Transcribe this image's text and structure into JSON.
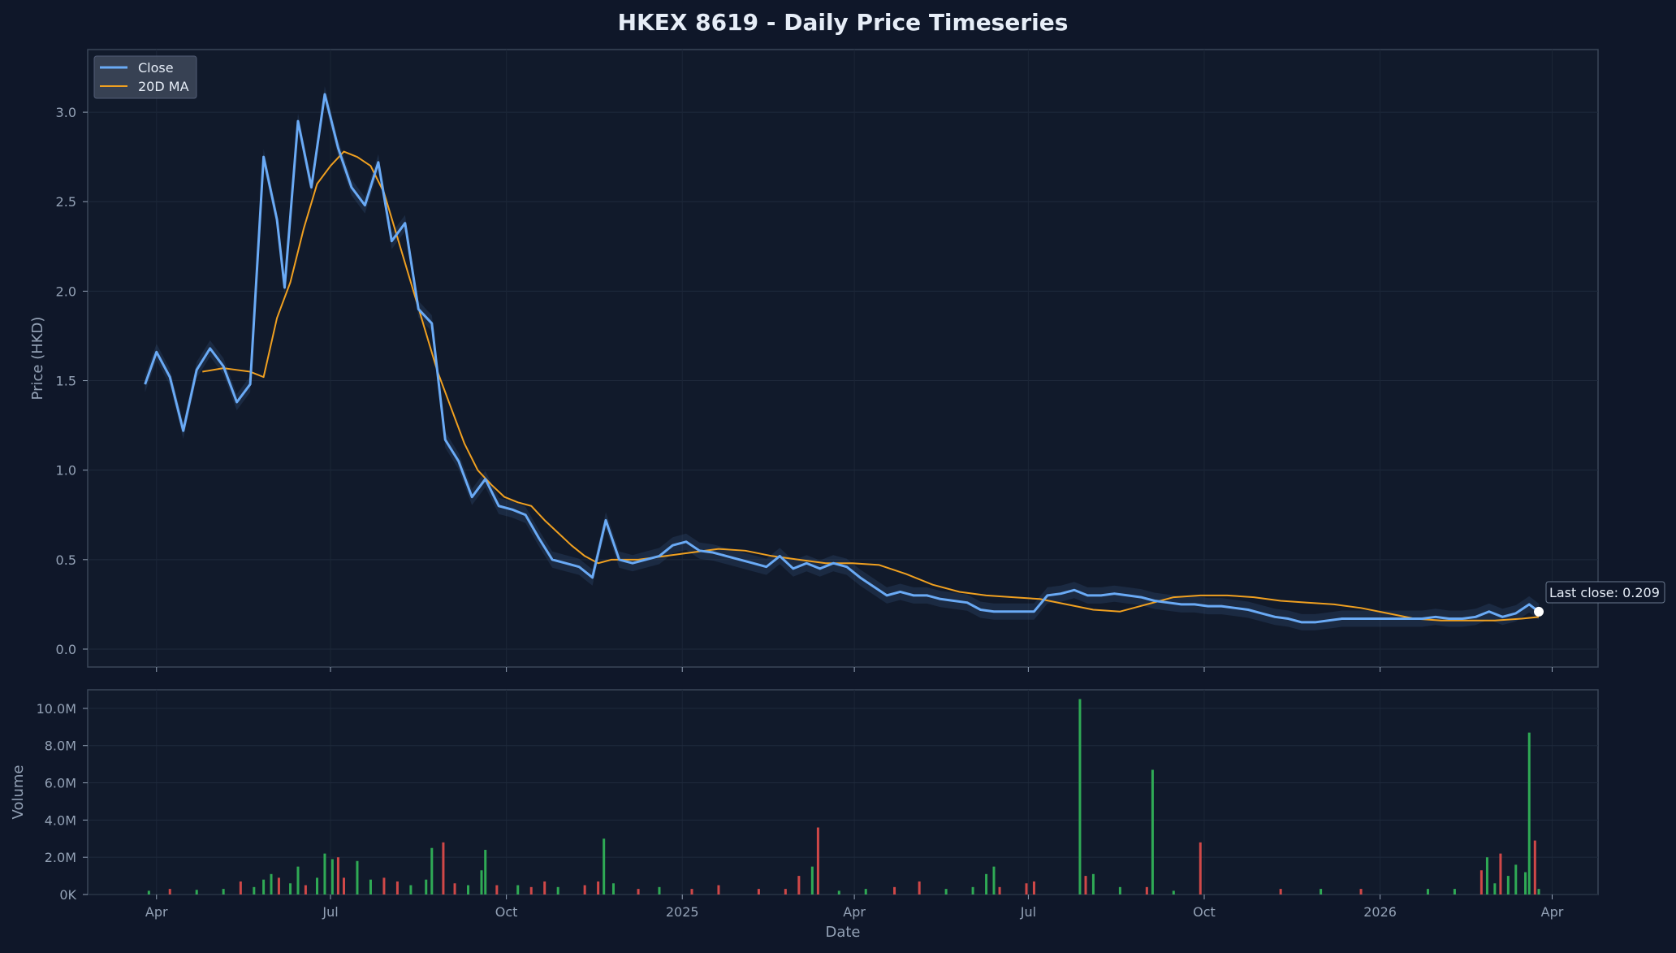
{
  "chart_data": {
    "type": "line",
    "title": "HKEX 8619 - Daily Price Timeseries",
    "xlabel": "Date",
    "price_panel": {
      "ylabel": "Price (HKD)",
      "ylim": [
        -0.1,
        3.35
      ],
      "yticks": [
        "0.0",
        "0.5",
        "1.0",
        "1.5",
        "2.0",
        "2.5",
        "3.0"
      ],
      "grid": true,
      "legend_position": "top-left",
      "series": [
        {
          "name": "Close",
          "color": "#6aaaf5",
          "x": [
            "2024-03-26",
            "2024-04-01",
            "2024-04-08",
            "2024-04-15",
            "2024-04-22",
            "2024-04-29",
            "2024-05-06",
            "2024-05-13",
            "2024-05-20",
            "2024-05-27",
            "2024-06-03",
            "2024-06-07",
            "2024-06-14",
            "2024-06-21",
            "2024-06-28",
            "2024-07-05",
            "2024-07-12",
            "2024-07-19",
            "2024-07-26",
            "2024-08-02",
            "2024-08-09",
            "2024-08-16",
            "2024-08-23",
            "2024-08-30",
            "2024-09-06",
            "2024-09-13",
            "2024-09-20",
            "2024-09-27",
            "2024-10-04",
            "2024-10-11",
            "2024-10-18",
            "2024-10-25",
            "2024-11-01",
            "2024-11-08",
            "2024-11-15",
            "2024-11-22",
            "2024-11-29",
            "2024-12-06",
            "2024-12-13",
            "2024-12-20",
            "2024-12-27",
            "2025-01-03",
            "2025-01-10",
            "2025-01-17",
            "2025-01-24",
            "2025-01-31",
            "2025-02-07",
            "2025-02-14",
            "2025-02-21",
            "2025-02-28",
            "2025-03-07",
            "2025-03-14",
            "2025-03-21",
            "2025-03-28",
            "2025-04-04",
            "2025-04-11",
            "2025-04-18",
            "2025-04-25",
            "2025-05-02",
            "2025-05-09",
            "2025-05-16",
            "2025-05-23",
            "2025-05-30",
            "2025-06-06",
            "2025-06-13",
            "2025-06-20",
            "2025-06-27",
            "2025-07-04",
            "2025-07-11",
            "2025-07-18",
            "2025-07-25",
            "2025-08-01",
            "2025-08-08",
            "2025-08-15",
            "2025-08-22",
            "2025-08-29",
            "2025-09-05",
            "2025-09-12",
            "2025-09-19",
            "2025-09-26",
            "2025-10-03",
            "2025-10-10",
            "2025-10-17",
            "2025-10-24",
            "2025-10-31",
            "2025-11-07",
            "2025-11-14",
            "2025-11-21",
            "2025-11-28",
            "2025-12-05",
            "2025-12-12",
            "2025-12-19",
            "2025-12-26",
            "2026-01-02",
            "2026-01-09",
            "2026-01-16",
            "2026-01-23",
            "2026-01-30",
            "2026-02-06",
            "2026-02-13",
            "2026-02-20",
            "2026-02-27",
            "2026-03-06",
            "2026-03-13",
            "2026-03-20",
            "2026-03-25"
          ],
          "y": [
            1.48,
            1.66,
            1.52,
            1.22,
            1.56,
            1.68,
            1.58,
            1.38,
            1.48,
            2.75,
            2.4,
            2.02,
            2.95,
            2.58,
            3.1,
            2.8,
            2.58,
            2.48,
            2.72,
            2.28,
            2.38,
            1.9,
            1.82,
            1.17,
            1.05,
            0.85,
            0.95,
            0.8,
            0.78,
            0.75,
            0.62,
            0.5,
            0.48,
            0.46,
            0.4,
            0.72,
            0.5,
            0.48,
            0.5,
            0.52,
            0.58,
            0.6,
            0.55,
            0.54,
            0.52,
            0.5,
            0.48,
            0.46,
            0.52,
            0.45,
            0.48,
            0.45,
            0.48,
            0.46,
            0.4,
            0.35,
            0.3,
            0.32,
            0.3,
            0.3,
            0.28,
            0.27,
            0.26,
            0.22,
            0.21,
            0.21,
            0.21,
            0.21,
            0.3,
            0.31,
            0.33,
            0.3,
            0.3,
            0.31,
            0.3,
            0.29,
            0.27,
            0.26,
            0.25,
            0.25,
            0.24,
            0.24,
            0.23,
            0.22,
            0.2,
            0.18,
            0.17,
            0.15,
            0.15,
            0.16,
            0.17,
            0.17,
            0.17,
            0.17,
            0.17,
            0.17,
            0.17,
            0.18,
            0.17,
            0.17,
            0.18,
            0.21,
            0.18,
            0.2,
            0.25,
            0.209
          ]
        },
        {
          "name": "20D MA",
          "color": "#f0a020",
          "x": [
            "2024-04-25",
            "2024-05-06",
            "2024-05-13",
            "2024-05-20",
            "2024-05-27",
            "2024-06-03",
            "2024-06-10",
            "2024-06-17",
            "2024-06-24",
            "2024-07-01",
            "2024-07-08",
            "2024-07-15",
            "2024-07-22",
            "2024-07-29",
            "2024-08-05",
            "2024-08-12",
            "2024-08-19",
            "2024-08-26",
            "2024-09-02",
            "2024-09-09",
            "2024-09-16",
            "2024-09-23",
            "2024-09-30",
            "2024-10-07",
            "2024-10-14",
            "2024-10-21",
            "2024-10-28",
            "2024-11-04",
            "2024-11-11",
            "2024-11-18",
            "2024-11-25",
            "2024-12-09",
            "2024-12-23",
            "2025-01-06",
            "2025-01-20",
            "2025-02-03",
            "2025-02-17",
            "2025-03-03",
            "2025-03-17",
            "2025-03-31",
            "2025-04-14",
            "2025-04-28",
            "2025-05-12",
            "2025-05-26",
            "2025-06-09",
            "2025-06-23",
            "2025-07-07",
            "2025-07-21",
            "2025-08-04",
            "2025-08-18",
            "2025-09-01",
            "2025-09-15",
            "2025-09-29",
            "2025-10-13",
            "2025-10-27",
            "2025-11-10",
            "2025-11-24",
            "2025-12-08",
            "2025-12-22",
            "2026-01-05",
            "2026-01-19",
            "2026-02-02",
            "2026-02-16",
            "2026-03-02",
            "2026-03-16",
            "2026-03-25"
          ],
          "y": [
            1.55,
            1.57,
            1.56,
            1.55,
            1.52,
            1.85,
            2.05,
            2.35,
            2.6,
            2.7,
            2.78,
            2.75,
            2.7,
            2.55,
            2.3,
            2.05,
            1.8,
            1.55,
            1.35,
            1.15,
            1.0,
            0.92,
            0.85,
            0.82,
            0.8,
            0.72,
            0.65,
            0.58,
            0.52,
            0.48,
            0.5,
            0.5,
            0.52,
            0.54,
            0.56,
            0.55,
            0.52,
            0.5,
            0.48,
            0.48,
            0.47,
            0.42,
            0.36,
            0.32,
            0.3,
            0.29,
            0.28,
            0.25,
            0.22,
            0.21,
            0.25,
            0.29,
            0.3,
            0.3,
            0.29,
            0.27,
            0.26,
            0.25,
            0.23,
            0.2,
            0.17,
            0.16,
            0.16,
            0.16,
            0.17,
            0.18
          ]
        }
      ],
      "annotation": "Last close: 0.209"
    },
    "volume_panel": {
      "ylabel": "Volume",
      "ylim": [
        0,
        11000000
      ],
      "yticks": [
        "0K",
        "2.0M",
        "4.0M",
        "6.0M",
        "8.0M",
        "10.0M"
      ],
      "grid": true,
      "up_color": "#2faa55",
      "down_color": "#d04848",
      "bars": [
        {
          "x": "2024-03-28",
          "v": 200000,
          "d": "up"
        },
        {
          "x": "2024-04-08",
          "v": 300000,
          "d": "down"
        },
        {
          "x": "2024-04-22",
          "v": 250000,
          "d": "up"
        },
        {
          "x": "2024-05-06",
          "v": 300000,
          "d": "up"
        },
        {
          "x": "2024-05-15",
          "v": 700000,
          "d": "down"
        },
        {
          "x": "2024-05-22",
          "v": 400000,
          "d": "up"
        },
        {
          "x": "2024-05-27",
          "v": 800000,
          "d": "up"
        },
        {
          "x": "2024-05-31",
          "v": 1100000,
          "d": "up"
        },
        {
          "x": "2024-06-04",
          "v": 900000,
          "d": "down"
        },
        {
          "x": "2024-06-10",
          "v": 600000,
          "d": "up"
        },
        {
          "x": "2024-06-14",
          "v": 1500000,
          "d": "up"
        },
        {
          "x": "2024-06-18",
          "v": 500000,
          "d": "down"
        },
        {
          "x": "2024-06-24",
          "v": 900000,
          "d": "up"
        },
        {
          "x": "2024-06-28",
          "v": 2200000,
          "d": "up"
        },
        {
          "x": "2024-07-02",
          "v": 1900000,
          "d": "up"
        },
        {
          "x": "2024-07-05",
          "v": 2000000,
          "d": "down"
        },
        {
          "x": "2024-07-08",
          "v": 900000,
          "d": "down"
        },
        {
          "x": "2024-07-15",
          "v": 1800000,
          "d": "up"
        },
        {
          "x": "2024-07-22",
          "v": 800000,
          "d": "up"
        },
        {
          "x": "2024-07-29",
          "v": 900000,
          "d": "down"
        },
        {
          "x": "2024-08-05",
          "v": 700000,
          "d": "down"
        },
        {
          "x": "2024-08-12",
          "v": 500000,
          "d": "up"
        },
        {
          "x": "2024-08-20",
          "v": 800000,
          "d": "up"
        },
        {
          "x": "2024-08-23",
          "v": 2500000,
          "d": "up"
        },
        {
          "x": "2024-08-29",
          "v": 2800000,
          "d": "down"
        },
        {
          "x": "2024-09-04",
          "v": 600000,
          "d": "down"
        },
        {
          "x": "2024-09-11",
          "v": 500000,
          "d": "up"
        },
        {
          "x": "2024-09-18",
          "v": 1300000,
          "d": "up"
        },
        {
          "x": "2024-09-20",
          "v": 2400000,
          "d": "up"
        },
        {
          "x": "2024-09-26",
          "v": 500000,
          "d": "down"
        },
        {
          "x": "2024-10-07",
          "v": 500000,
          "d": "up"
        },
        {
          "x": "2024-10-14",
          "v": 400000,
          "d": "down"
        },
        {
          "x": "2024-10-21",
          "v": 700000,
          "d": "down"
        },
        {
          "x": "2024-10-28",
          "v": 400000,
          "d": "up"
        },
        {
          "x": "2024-11-11",
          "v": 500000,
          "d": "down"
        },
        {
          "x": "2024-11-18",
          "v": 700000,
          "d": "down"
        },
        {
          "x": "2024-11-21",
          "v": 3000000,
          "d": "up"
        },
        {
          "x": "2024-11-26",
          "v": 600000,
          "d": "up"
        },
        {
          "x": "2024-12-09",
          "v": 300000,
          "d": "down"
        },
        {
          "x": "2024-12-20",
          "v": 400000,
          "d": "up"
        },
        {
          "x": "2025-01-06",
          "v": 300000,
          "d": "down"
        },
        {
          "x": "2025-01-20",
          "v": 500000,
          "d": "down"
        },
        {
          "x": "2025-02-10",
          "v": 300000,
          "d": "down"
        },
        {
          "x": "2025-02-24",
          "v": 300000,
          "d": "down"
        },
        {
          "x": "2025-03-03",
          "v": 1000000,
          "d": "down"
        },
        {
          "x": "2025-03-10",
          "v": 1500000,
          "d": "up"
        },
        {
          "x": "2025-03-13",
          "v": 3600000,
          "d": "down"
        },
        {
          "x": "2025-03-24",
          "v": 200000,
          "d": "up"
        },
        {
          "x": "2025-04-07",
          "v": 300000,
          "d": "up"
        },
        {
          "x": "2025-04-22",
          "v": 400000,
          "d": "down"
        },
        {
          "x": "2025-05-05",
          "v": 700000,
          "d": "down"
        },
        {
          "x": "2025-05-19",
          "v": 300000,
          "d": "up"
        },
        {
          "x": "2025-06-02",
          "v": 400000,
          "d": "up"
        },
        {
          "x": "2025-06-09",
          "v": 1100000,
          "d": "up"
        },
        {
          "x": "2025-06-13",
          "v": 1500000,
          "d": "up"
        },
        {
          "x": "2025-06-16",
          "v": 400000,
          "d": "down"
        },
        {
          "x": "2025-06-30",
          "v": 600000,
          "d": "down"
        },
        {
          "x": "2025-07-04",
          "v": 700000,
          "d": "down"
        },
        {
          "x": "2025-07-28",
          "v": 10500000,
          "d": "up"
        },
        {
          "x": "2025-07-31",
          "v": 1000000,
          "d": "down"
        },
        {
          "x": "2025-08-04",
          "v": 1100000,
          "d": "up"
        },
        {
          "x": "2025-08-18",
          "v": 400000,
          "d": "up"
        },
        {
          "x": "2025-09-01",
          "v": 400000,
          "d": "down"
        },
        {
          "x": "2025-09-04",
          "v": 6700000,
          "d": "up"
        },
        {
          "x": "2025-09-15",
          "v": 200000,
          "d": "up"
        },
        {
          "x": "2025-09-29",
          "v": 2800000,
          "d": "down"
        },
        {
          "x": "2025-11-10",
          "v": 300000,
          "d": "down"
        },
        {
          "x": "2025-12-01",
          "v": 300000,
          "d": "up"
        },
        {
          "x": "2025-12-22",
          "v": 300000,
          "d": "down"
        },
        {
          "x": "2026-01-26",
          "v": 300000,
          "d": "up"
        },
        {
          "x": "2026-02-09",
          "v": 300000,
          "d": "up"
        },
        {
          "x": "2026-02-23",
          "v": 1300000,
          "d": "down"
        },
        {
          "x": "2026-02-26",
          "v": 2000000,
          "d": "up"
        },
        {
          "x": "2026-03-02",
          "v": 600000,
          "d": "up"
        },
        {
          "x": "2026-03-05",
          "v": 2200000,
          "d": "down"
        },
        {
          "x": "2026-03-09",
          "v": 1000000,
          "d": "up"
        },
        {
          "x": "2026-03-13",
          "v": 1600000,
          "d": "up"
        },
        {
          "x": "2026-03-18",
          "v": 1200000,
          "d": "up"
        },
        {
          "x": "2026-03-20",
          "v": 8700000,
          "d": "up"
        },
        {
          "x": "2026-03-23",
          "v": 2900000,
          "d": "down"
        },
        {
          "x": "2026-03-25",
          "v": 300000,
          "d": "up"
        }
      ]
    },
    "xticks": [
      {
        "x": "2024-04-01",
        "label": "Apr"
      },
      {
        "x": "2024-07-01",
        "label": "Jul"
      },
      {
        "x": "2024-10-01",
        "label": "Oct"
      },
      {
        "x": "2025-01-01",
        "label": "2025"
      },
      {
        "x": "2025-04-01",
        "label": "Apr"
      },
      {
        "x": "2025-07-01",
        "label": "Jul"
      },
      {
        "x": "2025-10-01",
        "label": "Oct"
      },
      {
        "x": "2026-01-01",
        "label": "2026"
      },
      {
        "x": "2026-04-01",
        "label": "Apr"
      }
    ]
  }
}
